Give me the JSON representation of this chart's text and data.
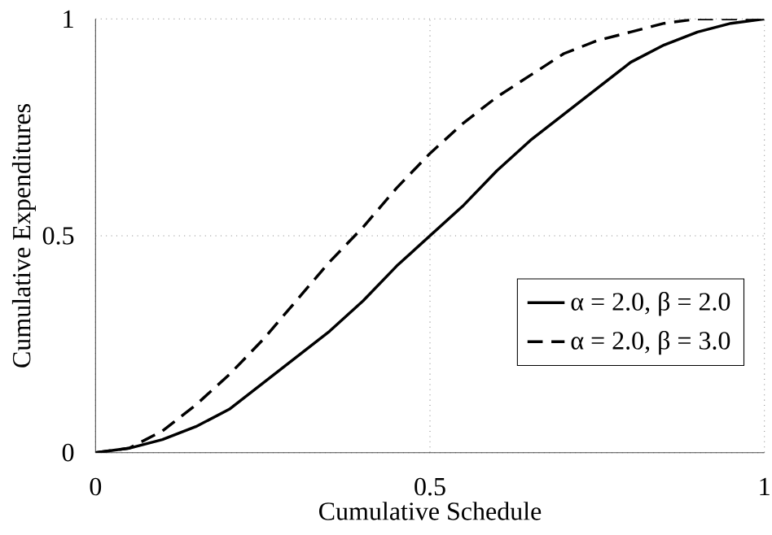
{
  "chart_data": {
    "type": "line",
    "xlabel": "Cumulative Schedule",
    "ylabel": "Cumulative Expenditures",
    "x": [
      0,
      0.05,
      0.1,
      0.15,
      0.2,
      0.25,
      0.3,
      0.35,
      0.4,
      0.45,
      0.5,
      0.55,
      0.6,
      0.65,
      0.7,
      0.75,
      0.8,
      0.85,
      0.9,
      0.95,
      1
    ],
    "series": [
      {
        "name": "α = 2.0, β = 2.0",
        "color": "#000000",
        "line_style": "solid",
        "values": [
          0,
          0.01,
          0.03,
          0.06,
          0.1,
          0.16,
          0.22,
          0.28,
          0.35,
          0.43,
          0.5,
          0.57,
          0.65,
          0.72,
          0.78,
          0.84,
          0.9,
          0.94,
          0.97,
          0.99,
          1
        ]
      },
      {
        "name": "α = 2.0, β = 3.0",
        "color": "#000000",
        "line_style": "dashed",
        "values": [
          0,
          0.01,
          0.05,
          0.11,
          0.18,
          0.26,
          0.35,
          0.44,
          0.52,
          0.61,
          0.69,
          0.76,
          0.82,
          0.87,
          0.92,
          0.95,
          0.97,
          0.99,
          1,
          1,
          1
        ]
      }
    ],
    "xlim": [
      0,
      1
    ],
    "ylim": [
      0,
      1
    ],
    "xticks": [
      0,
      0.5,
      1
    ],
    "yticks": [
      0,
      0.5,
      1
    ],
    "grid": true,
    "legend": "bottom right",
    "marker": "none"
  }
}
